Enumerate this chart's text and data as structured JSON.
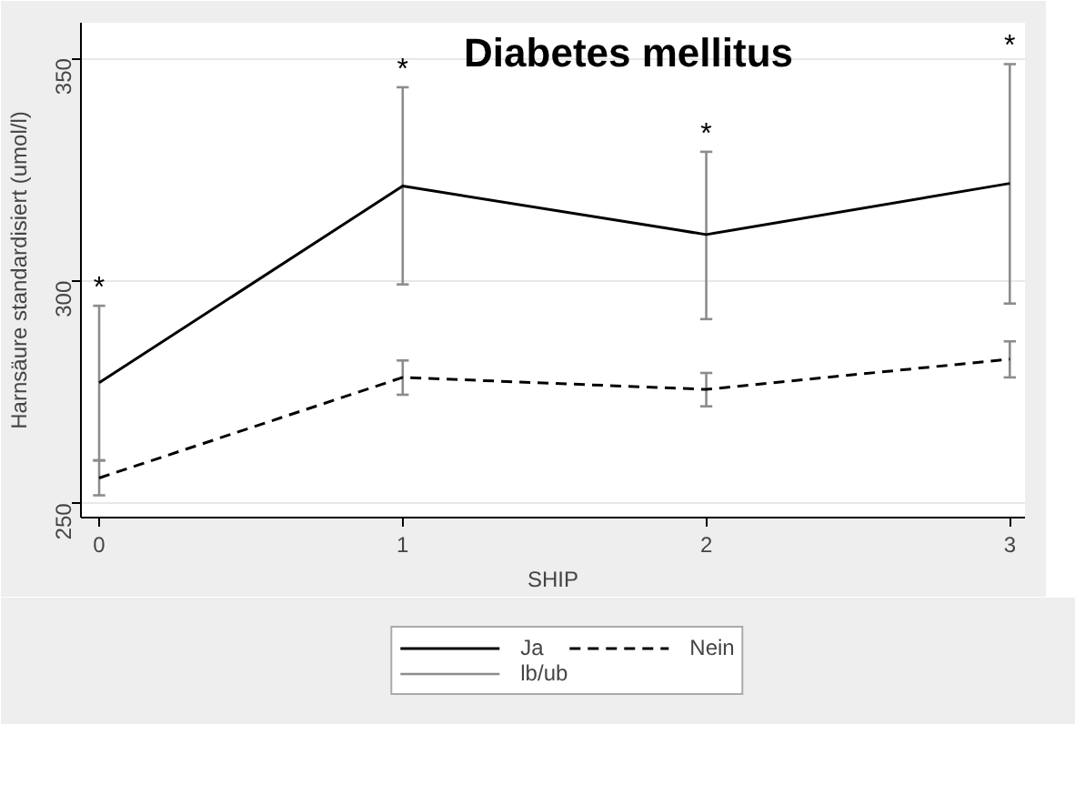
{
  "chart_data": {
    "type": "line",
    "title": "Diabetes mellitus",
    "xlabel": "SHIP",
    "ylabel": "Harnsäure standardisiert (umol/l)",
    "x": [
      0,
      1,
      2,
      3
    ],
    "series": [
      {
        "name": "Ja",
        "color": "#000000",
        "line_style": "solid",
        "values": [
          277.1,
          321.3,
          310.4,
          321.9
        ],
        "errors": [
          [
            259.7,
            294.4
          ],
          [
            299.2,
            343.5
          ],
          [
            291.4,
            329.0
          ],
          [
            294.9,
            348.7
          ]
        ]
      },
      {
        "name": "Nein",
        "color": "#000000",
        "line_style": "dashed",
        "values": [
          255.7,
          278.3,
          275.6,
          282.4
        ],
        "errors": [
          [
            251.8,
            259.6
          ],
          [
            274.4,
            282.1
          ],
          [
            271.8,
            279.3
          ],
          [
            278.3,
            286.4
          ]
        ]
      }
    ],
    "annotations": [
      "lb/ub",
      {
        "text": "*",
        "x": 0,
        "y": 294.4
      },
      {
        "text": "*",
        "x": 1,
        "y": 343.5
      },
      {
        "text": "*",
        "x": 2,
        "y": 329.0
      },
      {
        "text": "*",
        "x": 3,
        "y": 348.7
      }
    ],
    "xlim": [
      -0.06,
      3.05
    ],
    "ylim": [
      246.8,
      358
    ],
    "xticks": [
      0,
      1,
      2,
      3
    ],
    "yticks": [
      250,
      300,
      350
    ],
    "grid": "y",
    "legend": "bottom",
    "marker": "none"
  }
}
